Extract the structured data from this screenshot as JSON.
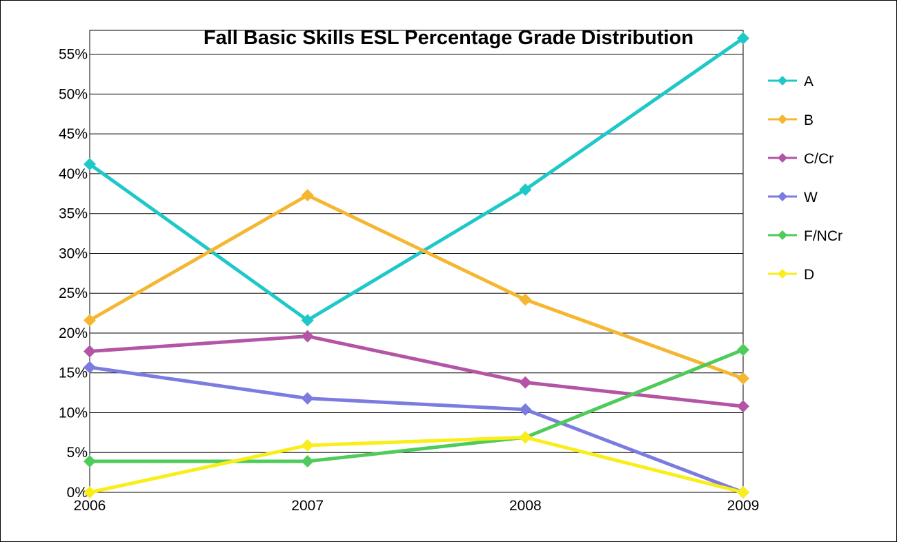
{
  "chart_data": {
    "type": "line",
    "title": "Fall Basic Skills ESL Percentage Grade Distribution",
    "xlabel": "",
    "ylabel": "",
    "categories": [
      "2006",
      "2007",
      "2008",
      "2009"
    ],
    "y_ticks": [
      "0%",
      "5%",
      "10%",
      "15%",
      "20%",
      "25%",
      "30%",
      "35%",
      "40%",
      "45%",
      "50%",
      "55%"
    ],
    "ylim": [
      0,
      58
    ],
    "grid": true,
    "legend_position": "right",
    "marker": "diamond",
    "series": [
      {
        "name": "A",
        "color": "#1fc8c8",
        "values": [
          41.2,
          21.6,
          38.0,
          57.0
        ]
      },
      {
        "name": "B",
        "color": "#f5b731",
        "values": [
          21.6,
          37.3,
          24.2,
          14.3
        ]
      },
      {
        "name": "C/Cr",
        "color": "#b355a4",
        "values": [
          17.7,
          19.6,
          13.8,
          10.8
        ]
      },
      {
        "name": "W",
        "color": "#7b7be0",
        "values": [
          15.7,
          11.8,
          10.4,
          0.0
        ]
      },
      {
        "name": "F/NCr",
        "color": "#4ecb5a",
        "values": [
          3.9,
          3.9,
          6.9,
          17.9
        ]
      },
      {
        "name": "D",
        "color": "#f9ee1a",
        "values": [
          0.0,
          5.9,
          6.9,
          0.0
        ]
      }
    ]
  }
}
